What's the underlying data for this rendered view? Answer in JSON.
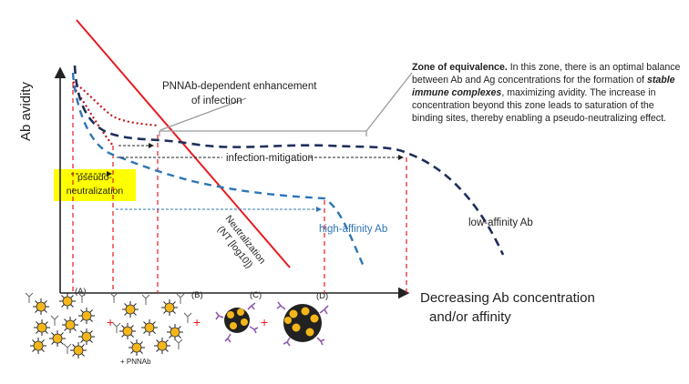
{
  "figure": {
    "y_axis_label": "Ab avidity",
    "x_axis_label_line1": "Decreasing Ab concentration",
    "x_axis_label_line2": "and/or affinity",
    "enhancement_label_line1": "PNNAb-dependent enhancement",
    "enhancement_label_line2": "of infection",
    "zone_title": "Zone of equivalence.",
    "zone_text1": " In this zone, there is an optimal balance between Ab and Ag concentrations for the formation of ",
    "zone_emph": "stable immune complexes",
    "zone_text2": ", maximizing avidity. The increase in concentration beyond this zone leads to saturation of the binding sites, thereby enabling a pseudo-neutralizing effect.",
    "infection_mitigation": "infection-mitigation",
    "pseudo_line1": "pseudo-",
    "pseudo_line2": "neutralization",
    "high_affinity": "high-affinity Ab",
    "low_affinity": "low-affinity Ab",
    "neutralization_line1": "Neutralization",
    "neutralization_line2": "(NT [log10])",
    "panel_a": "(A)",
    "panel_b": "(B)",
    "panel_c": "(C)",
    "panel_d": "(D)",
    "plus": "+",
    "pnnab_label": "+ PNNAb"
  },
  "colors": {
    "neutralization": "#e8191f",
    "high_affinity": "#2e75b6",
    "low_affinity": "#1f2f5a",
    "guide": "#e8191f",
    "highlight": "#ffff00"
  }
}
